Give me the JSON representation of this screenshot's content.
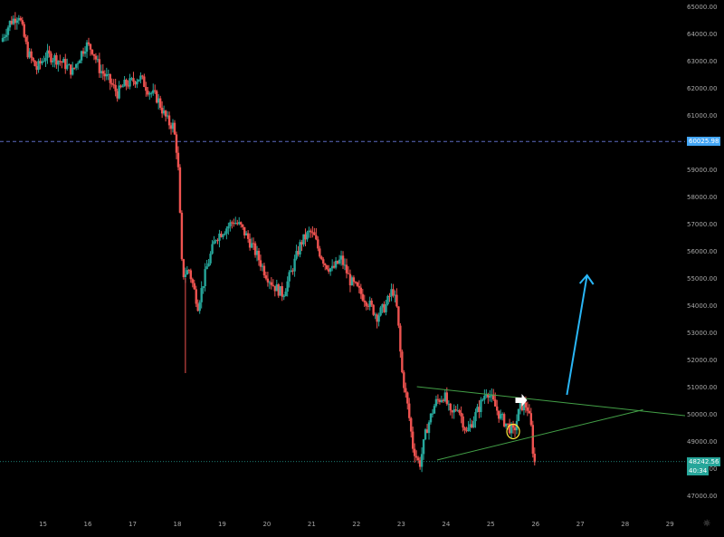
{
  "colors": {
    "background": "#000000",
    "up": "#26a69a",
    "down": "#ef5350",
    "axis_text": "#a7a7a7",
    "trendline": "#43a047",
    "arrow": "#29b6f6",
    "circle": "#ffeb3b",
    "hline_blue": "#5c6bc0",
    "hline_green": "#26a69a",
    "tag_blue": "#42a5f5",
    "tag_green": "#26a69a"
  },
  "tags": {
    "level_price": "60025.98",
    "last_price": "48242.56",
    "countdown": "40:34"
  },
  "chart_data": {
    "type": "candlestick",
    "y_ticks": [
      "65000.00",
      "64000.00",
      "63000.00",
      "62000.00",
      "61000.00",
      "60000.00",
      "59000.00",
      "58000.00",
      "57000.00",
      "56000.00",
      "55000.00",
      "54000.00",
      "53000.00",
      "52000.00",
      "51000.00",
      "50000.00",
      "49000.00",
      "48000.00",
      "47000.00"
    ],
    "x_ticks": [
      "15",
      "16",
      "17",
      "18",
      "19",
      "20",
      "21",
      "22",
      "23",
      "24",
      "25",
      "26",
      "27",
      "28",
      "29"
    ],
    "ylim": [
      46500,
      65100
    ],
    "xlim": [
      14.1,
      29.4
    ],
    "price_path": [
      [
        14.1,
        63700
      ],
      [
        14.3,
        64400
      ],
      [
        14.5,
        64700
      ],
      [
        14.7,
        63300
      ],
      [
        14.9,
        62700
      ],
      [
        15.1,
        63200
      ],
      [
        15.3,
        63100
      ],
      [
        15.5,
        62900
      ],
      [
        15.7,
        62600
      ],
      [
        15.9,
        63300
      ],
      [
        16.0,
        63600
      ],
      [
        16.15,
        63400
      ],
      [
        16.3,
        62700
      ],
      [
        16.5,
        62300
      ],
      [
        16.7,
        61800
      ],
      [
        16.85,
        62100
      ],
      [
        17.0,
        62200
      ],
      [
        17.2,
        62400
      ],
      [
        17.4,
        61900
      ],
      [
        17.6,
        61600
      ],
      [
        17.75,
        61000
      ],
      [
        17.85,
        60700
      ],
      [
        17.95,
        60600
      ],
      [
        18.05,
        59400
      ],
      [
        18.15,
        55100
      ],
      [
        18.3,
        55300
      ],
      [
        18.5,
        54000
      ],
      [
        18.7,
        55400
      ],
      [
        18.9,
        56500
      ],
      [
        19.1,
        56800
      ],
      [
        19.3,
        57100
      ],
      [
        19.45,
        56900
      ],
      [
        19.6,
        56500
      ],
      [
        19.8,
        55900
      ],
      [
        20.0,
        55200
      ],
      [
        20.2,
        54700
      ],
      [
        20.4,
        54400
      ],
      [
        20.6,
        55300
      ],
      [
        20.8,
        56300
      ],
      [
        21.0,
        56700
      ],
      [
        21.1,
        56500
      ],
      [
        21.2,
        56000
      ],
      [
        21.35,
        55500
      ],
      [
        21.5,
        55300
      ],
      [
        21.7,
        55700
      ],
      [
        21.9,
        54900
      ],
      [
        22.1,
        54500
      ],
      [
        22.3,
        54100
      ],
      [
        22.5,
        53600
      ],
      [
        22.7,
        54000
      ],
      [
        22.85,
        54600
      ],
      [
        22.95,
        53800
      ],
      [
        23.05,
        51600
      ],
      [
        23.2,
        50100
      ],
      [
        23.3,
        48800
      ],
      [
        23.45,
        48100
      ],
      [
        23.6,
        49400
      ],
      [
        23.8,
        50400
      ],
      [
        24.0,
        50700
      ],
      [
        24.15,
        49900
      ],
      [
        24.3,
        50300
      ],
      [
        24.5,
        49300
      ],
      [
        24.65,
        49800
      ],
      [
        24.8,
        50300
      ],
      [
        24.95,
        50900
      ],
      [
        25.1,
        50400
      ],
      [
        25.25,
        49900
      ],
      [
        25.4,
        49600
      ],
      [
        25.55,
        49300
      ],
      [
        25.7,
        50300
      ],
      [
        25.85,
        50300
      ],
      [
        25.95,
        49400
      ],
      [
        26.0,
        48200
      ]
    ],
    "horizontal_levels": [
      {
        "price": 60025.98,
        "style": "dashed-blue"
      },
      {
        "price": 48242.56,
        "style": "dotted-green"
      }
    ],
    "annotations": {
      "upper_trendline": [
        [
          23.35,
          51000
        ],
        [
          29.4,
          49920
        ]
      ],
      "lower_trendline": [
        [
          23.8,
          48300
        ],
        [
          28.4,
          50150
        ]
      ],
      "arrow": [
        [
          26.7,
          50700
        ],
        [
          27.15,
          55100
        ]
      ],
      "circle_center": [
        25.5,
        49350
      ],
      "pointer_at": [
        25.55,
        50500
      ]
    }
  }
}
